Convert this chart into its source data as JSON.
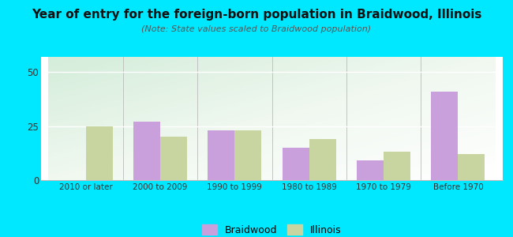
{
  "title": "Year of entry for the foreign-born population in Braidwood, Illinois",
  "subtitle": "(Note: State values scaled to Braidwood population)",
  "categories": [
    "2010 or later",
    "2000 to 2009",
    "1990 to 1999",
    "1980 to 1989",
    "1970 to 1979",
    "Before 1970"
  ],
  "braidwood": [
    0,
    27,
    23,
    15,
    9,
    41
  ],
  "illinois": [
    25,
    20,
    23,
    19,
    13,
    12
  ],
  "braidwood_color": "#c9a0dc",
  "illinois_color": "#c8d5a0",
  "bg_outer": "#00e8ff",
  "bg_chart_topleft": "#e8f5e0",
  "bg_chart_bottomright": "#f5fbf8",
  "ylim": [
    0,
    57
  ],
  "yticks": [
    0,
    25,
    50
  ],
  "bar_width": 0.36,
  "legend_labels": [
    "Braidwood",
    "Illinois"
  ],
  "title_fontsize": 11,
  "subtitle_fontsize": 8
}
